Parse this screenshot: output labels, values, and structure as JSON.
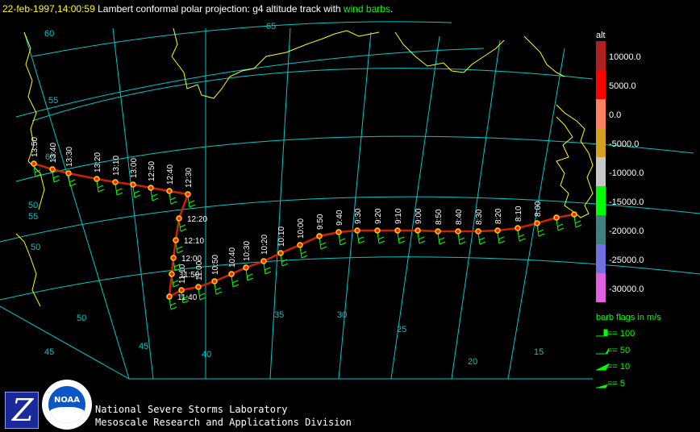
{
  "title": {
    "date": "22-feb-1997,14:00:59",
    "middle": " Lambert conformal polar projection:  g4 altitude track with ",
    "highlight": "wind barbs",
    "tail": "."
  },
  "colors": {
    "grid": "#00c8c8",
    "coast": "#ffff00",
    "track": "#cc2200",
    "points": "#ffd400",
    "barbs": "#00ff00",
    "labels": "#ffffff"
  },
  "grid_labels": {
    "lat": [
      "60",
      "55",
      "50",
      "65",
      "60",
      "55",
      "50"
    ],
    "lon": [
      "45",
      "50",
      "45",
      "40",
      "35",
      "30",
      "25",
      "20",
      "15"
    ]
  },
  "time_labels": [
    "13:50",
    "13:40",
    "13:30",
    "13:20",
    "13:10",
    "13:00",
    "12:50",
    "12:40",
    "12:30",
    "12:20",
    "12:10",
    "12:00",
    "11:50",
    "11:40",
    "11:10",
    "11:00",
    "10:50",
    "10:40",
    "10:30",
    "10:20",
    "10:10",
    "10:00",
    "9:50",
    "9:40",
    "9:30",
    "9:20",
    "9:10",
    "9:00",
    "8:50",
    "8:40",
    "8:30",
    "8:20",
    "8:10",
    "8:00"
  ],
  "legend": {
    "title": "alt",
    "scale": [
      {
        "label": "10000.0",
        "color": "#b02020"
      },
      {
        "label": "5000.0",
        "color": "#ff0000"
      },
      {
        "label": "0.0",
        "color": "#ff8060"
      },
      {
        "label": "-5000.0",
        "color": "#d4a020"
      },
      {
        "label": "-10000.0",
        "color": "#c8c8c8"
      },
      {
        "label": "-15000.0",
        "color": "#00ff00"
      },
      {
        "label": "-20000.0",
        "color": "#408080"
      },
      {
        "label": "-25000.0",
        "color": "#7070e0"
      },
      {
        "label": "-30000.0",
        "color": "#e060e0"
      }
    ],
    "barb_title": "barb flags in m/s",
    "barbs": [
      "== 100",
      "== 50",
      "== 10",
      "== 5"
    ]
  },
  "footer": {
    "line1": "National Severe Storms Laboratory",
    "line2": "Mesoscale Research and Applications Division"
  },
  "logos": {
    "z": "Z",
    "noaa": "NOAA"
  }
}
